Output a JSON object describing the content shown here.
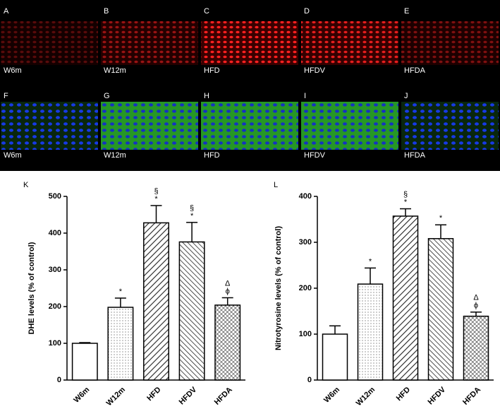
{
  "panels": [
    {
      "letter": "A",
      "label": "W6m"
    },
    {
      "letter": "B",
      "label": "W12m"
    },
    {
      "letter": "C",
      "label": "HFD"
    },
    {
      "letter": "D",
      "label": "HFDV"
    },
    {
      "letter": "E",
      "label": "HFDA"
    },
    {
      "letter": "F",
      "label": "W6m"
    },
    {
      "letter": "G",
      "label": "W12m"
    },
    {
      "letter": "H",
      "label": "HFD"
    },
    {
      "letter": "I",
      "label": "HFDV"
    },
    {
      "letter": "J",
      "label": "HFDA"
    }
  ],
  "chart_data": [
    {
      "type": "bar",
      "panel": "K",
      "y_label": "DHE levels (% of control)",
      "categories": [
        "W6m",
        "W12m",
        "HFD",
        "HFDV",
        "HFDA"
      ],
      "values": [
        100,
        198,
        428,
        376,
        204
      ],
      "errors": [
        2,
        25,
        47,
        53,
        20
      ],
      "annotations": [
        [],
        [
          "*"
        ],
        [
          "*",
          "§"
        ],
        [
          "*",
          "§"
        ],
        [
          "ϕ",
          "Δ"
        ]
      ],
      "fills": [
        "none",
        "dots",
        "hatch-right",
        "hatch-left",
        "cross"
      ],
      "color": "#000000",
      "ylim": [
        0,
        500
      ],
      "yticks": [
        0,
        100,
        200,
        300,
        400,
        500
      ]
    },
    {
      "type": "bar",
      "panel": "L",
      "y_label": "Nitrotyrosine levels (% of control)",
      "categories": [
        "W6m",
        "W12m",
        "HFD",
        "HFDV",
        "HFDA"
      ],
      "values": [
        100,
        209,
        357,
        308,
        139
      ],
      "errors": [
        18,
        35,
        16,
        30,
        9
      ],
      "annotations": [
        [],
        [
          "*"
        ],
        [
          "*",
          "§"
        ],
        [
          "*"
        ],
        [
          "ϕ",
          "Δ"
        ]
      ],
      "fills": [
        "none",
        "dots",
        "hatch-right",
        "hatch-left",
        "cross"
      ],
      "color": "#000000",
      "ylim": [
        0,
        400
      ],
      "yticks": [
        0,
        100,
        200,
        300,
        400
      ]
    }
  ]
}
